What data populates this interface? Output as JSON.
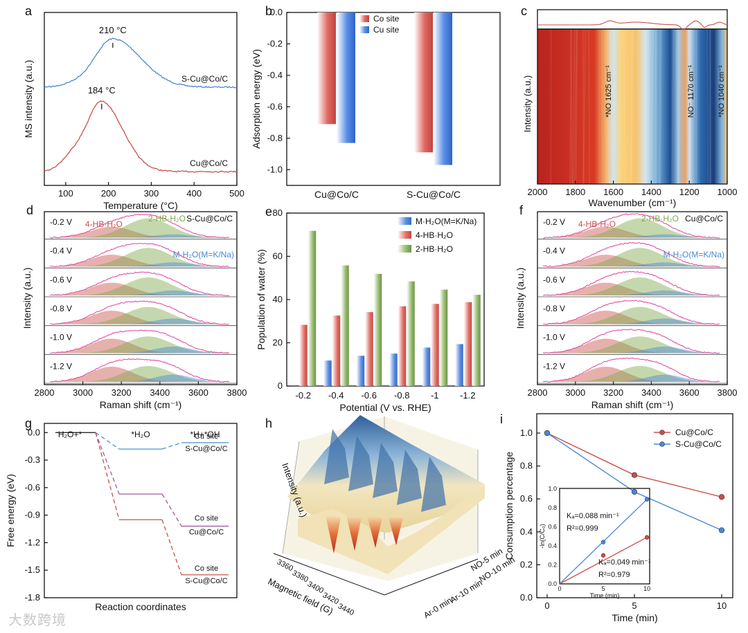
{
  "watermark": "大数跨境",
  "colors": {
    "red": "#c8514a",
    "blue": "#4a87d6",
    "green": "#7fa84a",
    "magenta": "#e0409a"
  },
  "panels": {
    "a": {
      "letter": "a",
      "xlabel": "Temperature (°C)",
      "ylabel": "MS intensity (a.u.)",
      "xticks": [
        "100",
        "200",
        "300",
        "400",
        "500"
      ],
      "peak1": "210 °C",
      "peak2": "184 °C",
      "label_top": "S-Cu@Co/C",
      "label_bot": "Cu@Co/C"
    },
    "b": {
      "letter": "b",
      "ylabel": "Adsorption energy (eV)",
      "legend": [
        "Co site",
        "Cu site"
      ]
    },
    "c": {
      "letter": "c",
      "xlabel": "Wavenumber (cm⁻¹)",
      "ylabel": "Intensity (a.u.)",
      "xticks": [
        "2000",
        "1800",
        "1600",
        "1400",
        "1200",
        "1000"
      ],
      "ann": [
        "*NO  1625 cm⁻¹",
        "NO⁻  1170 cm⁻¹",
        "*NO  1040 cm⁻¹"
      ]
    },
    "d": {
      "letter": "d",
      "title": "S-Cu@Co/C",
      "xlabel": "Raman shift (cm⁻¹)",
      "ylabel": "Intensity (a.u.)",
      "xticks": [
        "2800",
        "3000",
        "3200",
        "3400",
        "3600",
        "3800"
      ],
      "l4": "4-HB·H₂O",
      "l2": "2-HB·H₂O",
      "lm": "M·H₂O(M=K/Na)",
      "potentials": [
        "-0.2 V",
        "-0.4 V",
        "-0.6 V",
        "-0.8 V",
        "-1.0 V",
        "-1.2 V"
      ]
    },
    "e": {
      "letter": "e",
      "xlabel": "Potential (V vs. RHE)",
      "ylabel": "Population of water (%)"
    },
    "f": {
      "letter": "f",
      "title": "Cu@Co/C",
      "xlabel": "Raman shift (cm⁻¹)",
      "ylabel": "Intensity (a.u.)",
      "xticks": [
        "2800",
        "3000",
        "3200",
        "3400",
        "3600",
        "3800"
      ],
      "l4": "4-HB·H₂O",
      "l2": "2-HB·H₂O",
      "lm": "M·H₂O(M=K/Na)",
      "potentials": [
        "-0.2 V",
        "-0.4 V",
        "-0.6 V",
        "-0.8 V",
        "-1.0 V",
        "-1.2 V"
      ]
    },
    "g": {
      "letter": "g",
      "xlabel": "Reaction coordinates",
      "ylabel": "Free energy (eV)",
      "states": [
        "H₂O+*",
        "*H₂O",
        "*H+*OH"
      ],
      "labels": [
        "Cu site",
        "S-Cu@Co/C",
        "Co site",
        "Cu@Co/C",
        "Co site",
        "S-Cu@Co/C"
      ]
    },
    "h": {
      "letter": "h",
      "zlabel": "Intensity (a.u.)",
      "xlabel": "Magnetic field (G)",
      "fticks": [
        "3360",
        "3380",
        "3400",
        "3420",
        "3440"
      ],
      "conds": [
        "NO-10 min",
        "NO-5 min",
        "Ar-10 min",
        "Ar-0 min"
      ]
    },
    "i": {
      "letter": "i",
      "xlabel": "Time (min)",
      "ylabel": "Consumption percentage",
      "inset_xlabel": "Time (min)",
      "inset_ylabel": "-ln(C/C₀)",
      "k1": "Kₐ=0.088 min⁻¹",
      "r1": "R²=0.999",
      "k2": "Kₐ=0.049 min⁻¹",
      "r2": "R²=0.979"
    }
  },
  "chart_data": [
    {
      "panel": "a",
      "type": "line",
      "xlabel": "Temperature (°C)",
      "ylabel": "MS intensity (a.u.)",
      "xlim": [
        50,
        500
      ],
      "series": [
        {
          "name": "S-Cu@Co/C",
          "peak_x": 210
        },
        {
          "name": "Cu@Co/C",
          "peak_x": 184
        }
      ]
    },
    {
      "panel": "b",
      "type": "bar",
      "ylabel": "Adsorption energy (eV)",
      "ylim": [
        -1.1,
        0
      ],
      "yticks": [
        0.0,
        -0.2,
        -0.4,
        -0.6,
        -0.8,
        -1.0
      ],
      "categories": [
        "Cu@Co/C",
        "S-Cu@Co/C"
      ],
      "series": [
        {
          "name": "Co site",
          "values": [
            -0.71,
            -0.89
          ]
        },
        {
          "name": "Cu site",
          "values": [
            -0.83,
            -0.97
          ]
        }
      ]
    },
    {
      "panel": "c",
      "type": "heatmap",
      "xlabel": "Wavenumber (cm⁻¹)",
      "ylabel": "Intensity (a.u.)",
      "xlim": [
        2000,
        1000
      ]
    },
    {
      "panel": "d",
      "type": "area",
      "xlabel": "Raman shift (cm⁻¹)",
      "ylabel": "Intensity (a.u.)",
      "xlim": [
        2800,
        3800
      ]
    },
    {
      "panel": "e",
      "type": "bar",
      "xlabel": "Potential (V vs. RHE)",
      "ylabel": "Population of water (%)",
      "ylim": [
        0,
        80
      ],
      "yticks": [
        0,
        20,
        40,
        60,
        80
      ],
      "categories": [
        "-0.2",
        "-0.4",
        "-0.6",
        "-0.8",
        "-1",
        "-1.2"
      ],
      "series": [
        {
          "name": "M·H₂O(M=K/Na)",
          "values": [
            0,
            11.8,
            14.0,
            15.0,
            17.8,
            19.4
          ]
        },
        {
          "name": "4-HB·H₂O",
          "values": [
            28.3,
            32.6,
            34.2,
            36.9,
            38.0,
            38.8
          ]
        },
        {
          "name": "2-HB·H₂O",
          "values": [
            71.8,
            55.8,
            51.9,
            48.4,
            44.6,
            42.2
          ]
        }
      ]
    },
    {
      "panel": "f",
      "type": "area",
      "xlabel": "Raman shift (cm⁻¹)",
      "ylabel": "Intensity (a.u.)",
      "xlim": [
        2800,
        3800
      ]
    },
    {
      "panel": "g",
      "type": "line",
      "xlabel": "Reaction coordinates",
      "ylabel": "Free energy (eV)",
      "ylim": [
        -1.8,
        0.1
      ],
      "yticks": [
        0.0,
        -0.3,
        -0.6,
        -0.9,
        -1.2,
        -1.5,
        -1.8
      ],
      "categories": [
        "H₂O+*",
        "*H₂O",
        "*H+*OH"
      ],
      "series": [
        {
          "name": "Cu site S-Cu@Co/C",
          "values": [
            0,
            -0.18,
            -0.11
          ]
        },
        {
          "name": "Co site Cu@Co/C",
          "values": [
            0,
            -0.67,
            -1.02
          ]
        },
        {
          "name": "Co site S-Cu@Co/C",
          "values": [
            0,
            -0.95,
            -1.55
          ]
        }
      ]
    },
    {
      "panel": "h",
      "type": "area",
      "xlabel": "Magnetic field (G)",
      "zlabel": "Intensity (a.u.)",
      "categories": [
        "Ar-0 min",
        "Ar-10 min",
        "NO-5 min",
        "NO-10 min"
      ]
    },
    {
      "panel": "i",
      "type": "line",
      "xlabel": "Time (min)",
      "ylabel": "Consumption percentage",
      "ylim": [
        0,
        1.0
      ],
      "xticks": [
        0,
        5,
        10
      ],
      "yticks": [
        0.0,
        0.2,
        0.4,
        0.6,
        0.8,
        1.0
      ],
      "series": [
        {
          "name": "Cu@Co/C",
          "x": [
            0,
            5,
            10
          ],
          "values": [
            1.0,
            0.745,
            0.612
          ]
        },
        {
          "name": "S-Cu@Co/C",
          "x": [
            0,
            5,
            10
          ],
          "values": [
            1.0,
            0.643,
            0.41
          ]
        }
      ],
      "inset": {
        "xlabel": "Time (min)",
        "ylabel": "-ln(C/C₀)",
        "xlim": [
          0,
          10
        ],
        "ylim": [
          0,
          1.0
        ],
        "series": [
          {
            "name": "S-Cu@Co/C",
            "x": [
              5,
              10
            ],
            "values": [
              0.44,
              0.89
            ]
          },
          {
            "name": "Cu@Co/C",
            "x": [
              5,
              10
            ],
            "values": [
              0.3,
              0.49
            ]
          }
        ]
      }
    }
  ]
}
